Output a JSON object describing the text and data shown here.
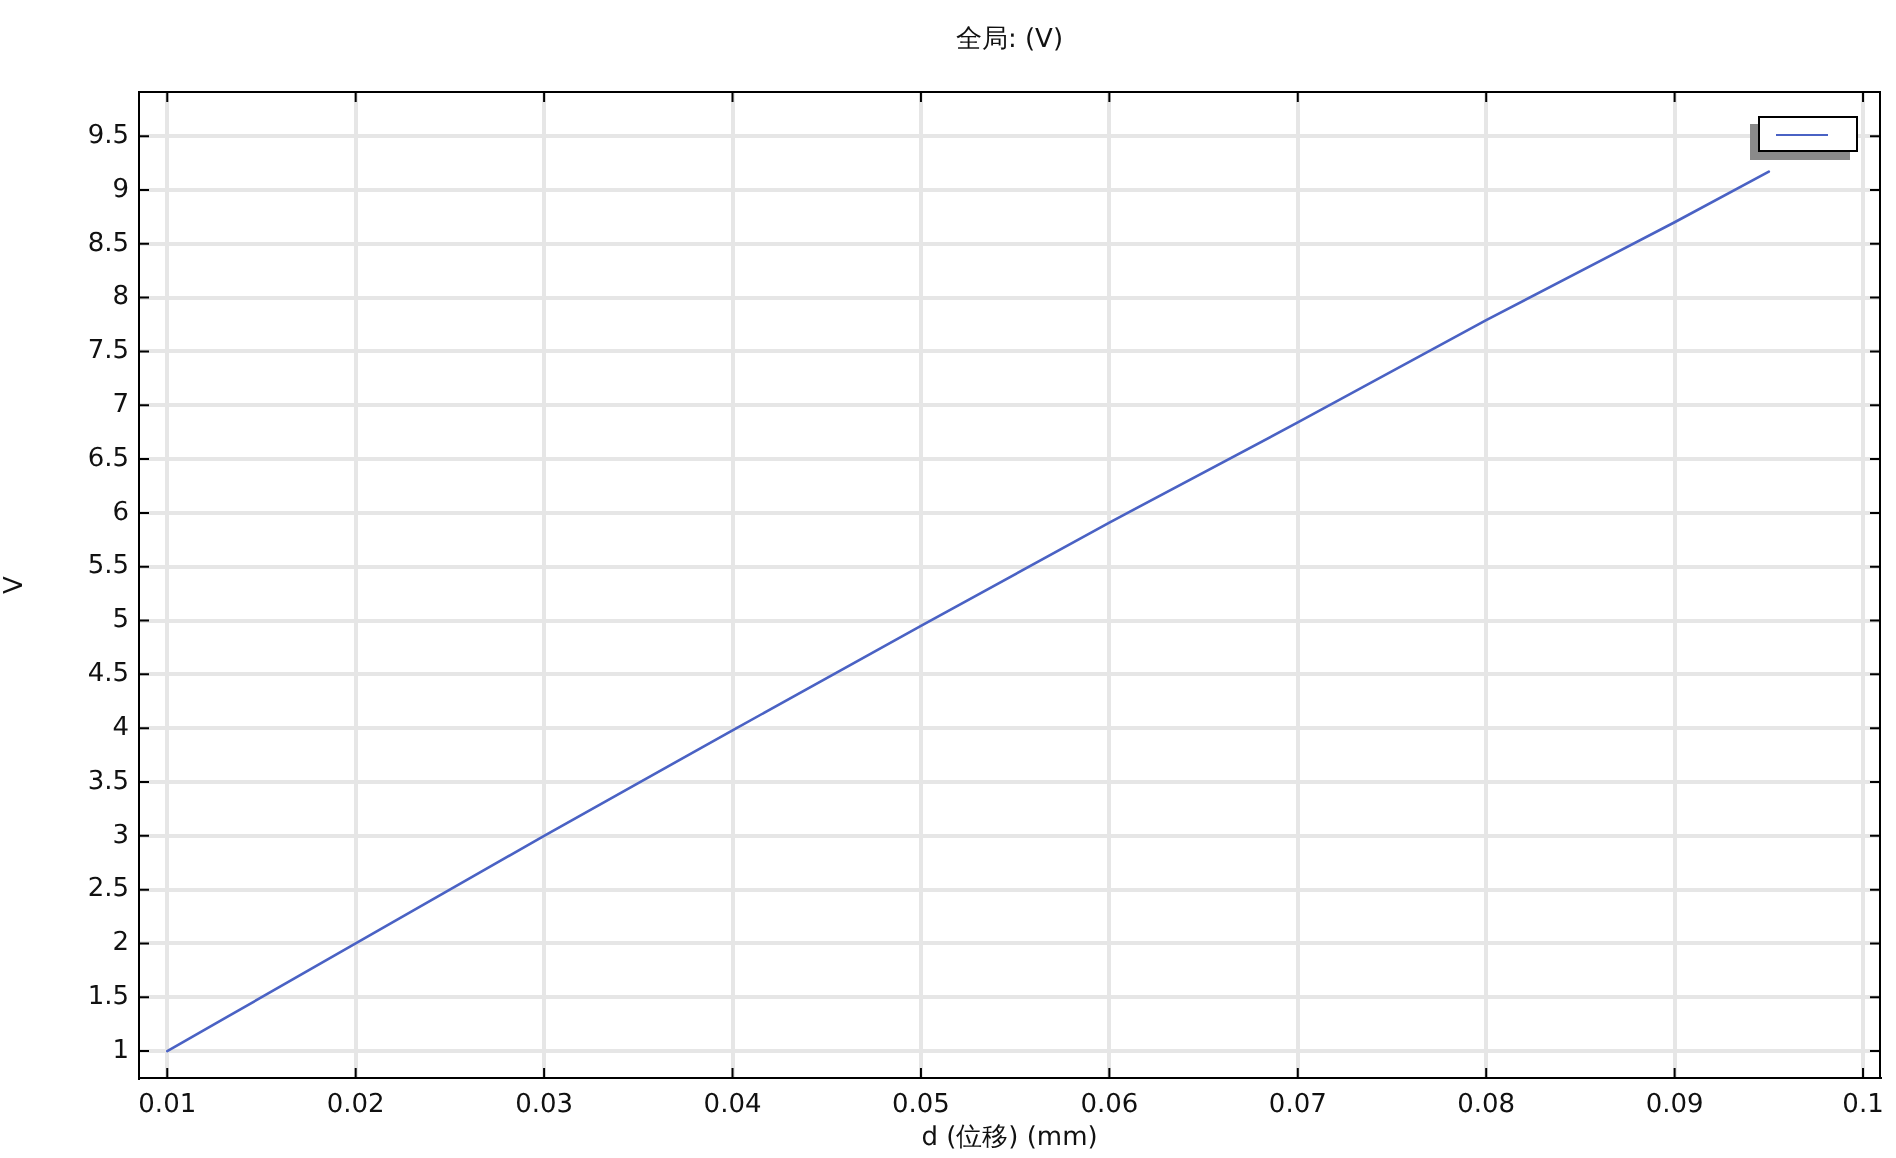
{
  "chart_data": {
    "type": "line",
    "title": "全局: (V)",
    "xlabel": "d (位移) (mm)",
    "ylabel": "V",
    "x": [
      0.01,
      0.02,
      0.03,
      0.04,
      0.05,
      0.06,
      0.07,
      0.08,
      0.09,
      0.095
    ],
    "series": [
      {
        "color": "#4a62c4",
        "values": [
          1,
          2,
          3,
          3.98,
          4.95,
          5.91,
          6.84,
          7.79,
          8.7,
          9.17
        ]
      }
    ],
    "xlim": [
      0.0085,
      0.1009
    ],
    "ylim": [
      0.75,
      9.91
    ],
    "xticks": [
      0.01,
      0.02,
      0.03,
      0.04,
      0.05,
      0.06,
      0.07,
      0.08,
      0.09,
      0.1
    ],
    "yticks": [
      1,
      1.5,
      2,
      2.5,
      3,
      3.5,
      4,
      4.5,
      5,
      5.5,
      6,
      6.5,
      7,
      7.5,
      8,
      8.5,
      9,
      9.5
    ],
    "grid": true,
    "marker": "none",
    "line_style": "solid"
  }
}
